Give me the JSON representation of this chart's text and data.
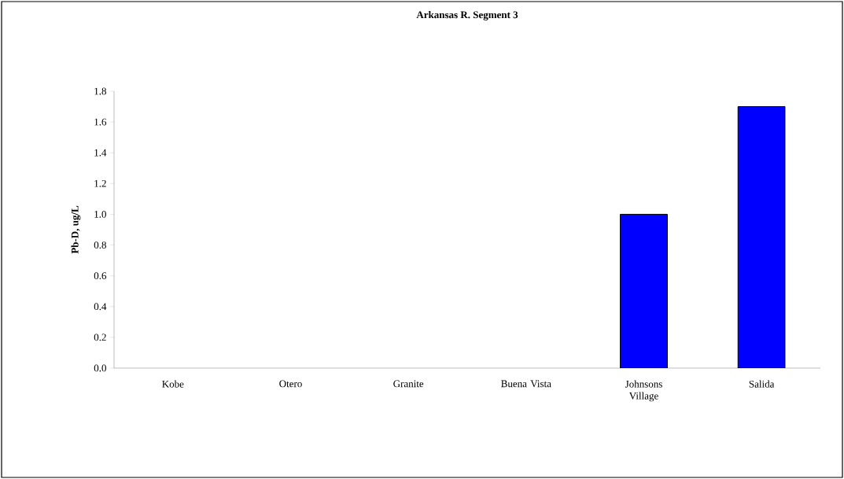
{
  "chart_data": {
    "type": "bar",
    "title": "Arkansas R. Segment 3",
    "ylabel": "Pb-D, ug/L",
    "categories": [
      "Kobe",
      "Otero",
      "Granite",
      "Buena Vista",
      "Johnsons Village",
      "Salida"
    ],
    "values": [
      null,
      null,
      null,
      null,
      1.0,
      1.7
    ],
    "color": "#0000ff",
    "ylim": [
      0,
      1.8
    ],
    "yticks": [
      {
        "value": 0,
        "label": "0.0"
      },
      {
        "value": 0.2,
        "label": "0.2"
      },
      {
        "value": 0.4,
        "label": "0.4"
      },
      {
        "value": 0.6,
        "label": "0.6"
      },
      {
        "value": 0.8,
        "label": "0.8"
      },
      {
        "value": 1.0,
        "label": "1.0"
      },
      {
        "value": 1.2,
        "label": "1.2"
      },
      {
        "value": 1.4,
        "label": "1.4"
      },
      {
        "value": 1.6,
        "label": "1.6"
      },
      {
        "value": 1.8,
        "label": "1.8"
      }
    ],
    "grid": false
  }
}
